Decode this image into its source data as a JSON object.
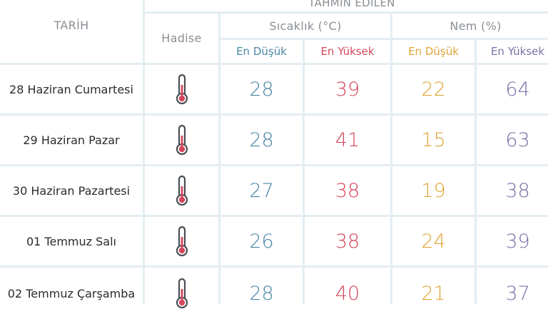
{
  "header": {
    "tarih": "TARİH",
    "tahmin": "TAHMİN EDİLEN",
    "hadise": "Hadise",
    "sicaklik": "Sıcaklık (°C)",
    "nem": "Nem (%)",
    "en_dusuk": "En Düşük",
    "en_yuksek": "En Yüksek"
  },
  "colors": {
    "low_temp": "#4b87a6",
    "high_temp": "#d4475c",
    "low_humidity": "#e0a435",
    "high_humidity": "#7d6fa6"
  },
  "rows": [
    {
      "date": "28 Haziran Cumartesi",
      "icon": "thermometer-icon",
      "temp_low": "28",
      "temp_high": "39",
      "hum_low": "22",
      "hum_high": "64"
    },
    {
      "date": "29 Haziran Pazar",
      "icon": "thermometer-icon",
      "temp_low": "28",
      "temp_high": "41",
      "hum_low": "15",
      "hum_high": "63"
    },
    {
      "date": "30 Haziran Pazartesi",
      "icon": "thermometer-icon",
      "temp_low": "27",
      "temp_high": "38",
      "hum_low": "19",
      "hum_high": "38"
    },
    {
      "date": "01 Temmuz Salı",
      "icon": "thermometer-icon",
      "temp_low": "26",
      "temp_high": "38",
      "hum_low": "24",
      "hum_high": "39"
    },
    {
      "date": "02 Temmuz Çarşamba",
      "icon": "thermometer-icon",
      "temp_low": "28",
      "temp_high": "40",
      "hum_low": "21",
      "hum_high": "37"
    }
  ]
}
